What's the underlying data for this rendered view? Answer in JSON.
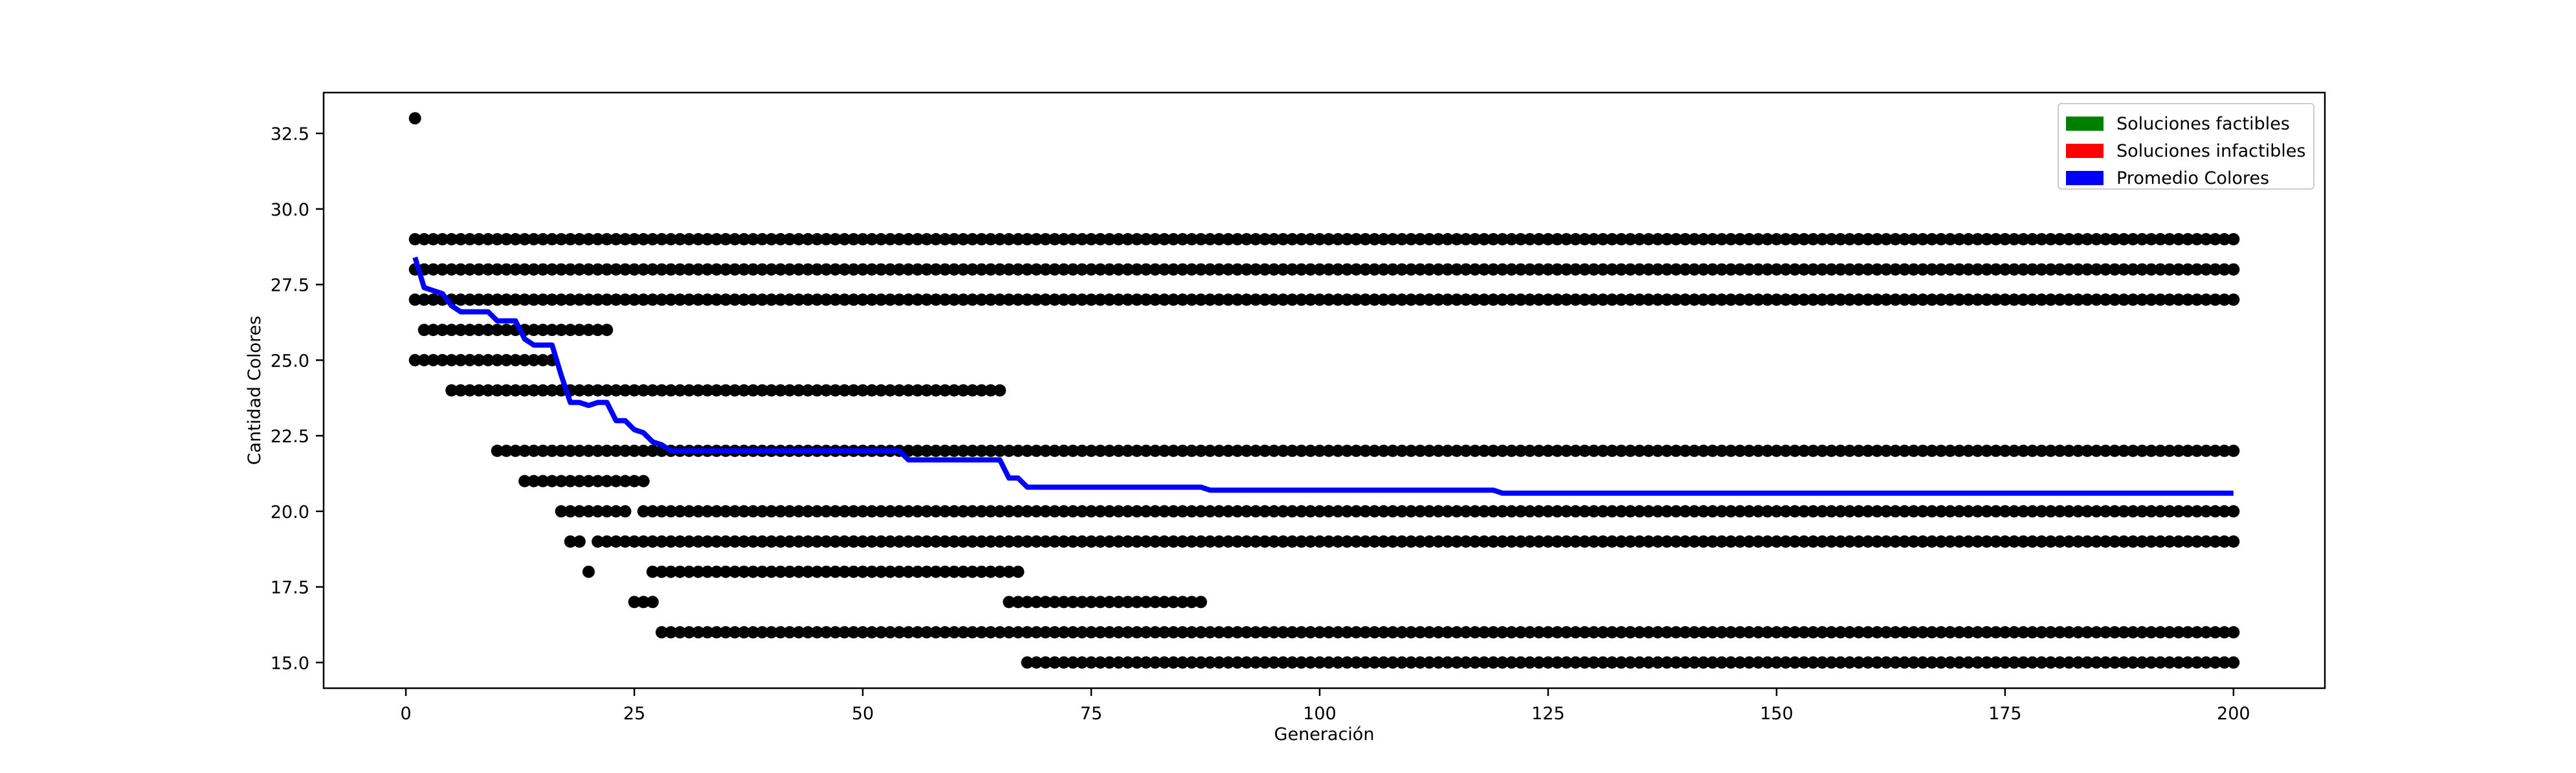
{
  "chart_data": {
    "type": "scatter",
    "title": "",
    "xlabel": "Generación",
    "ylabel": "Cantidad Colores",
    "xlim": [
      -9,
      210
    ],
    "ylim": [
      14.15,
      33.85
    ],
    "xticks": [
      0,
      25,
      50,
      75,
      100,
      125,
      150,
      175,
      200
    ],
    "yticks": [
      15.0,
      17.5,
      20.0,
      22.5,
      25.0,
      27.5,
      30.0,
      32.5
    ],
    "ytick_labels": [
      "15.0",
      "17.5",
      "20.0",
      "22.5",
      "25.0",
      "27.5",
      "30.0",
      "32.5"
    ],
    "grid": false,
    "legend_position": "top-right",
    "legend": [
      {
        "name": "Soluciones factibles",
        "color": "#008000"
      },
      {
        "name": "Soluciones infactibles",
        "color": "#ff0000"
      },
      {
        "name": "Promedio Colores",
        "color": "#0000ff"
      }
    ],
    "point_color": "#000000",
    "line_color": "#0000ff",
    "scatter_levels": [
      {
        "y": 33,
        "x_ranges": [
          [
            1,
            1
          ]
        ]
      },
      {
        "y": 29,
        "x_ranges": [
          [
            1,
            200
          ]
        ]
      },
      {
        "y": 28,
        "x_ranges": [
          [
            1,
            200
          ]
        ]
      },
      {
        "y": 27,
        "x_ranges": [
          [
            1,
            200
          ]
        ]
      },
      {
        "y": 26,
        "x_ranges": [
          [
            2,
            22
          ]
        ]
      },
      {
        "y": 25,
        "x_ranges": [
          [
            1,
            16
          ]
        ]
      },
      {
        "y": 24,
        "x_ranges": [
          [
            5,
            65
          ]
        ]
      },
      {
        "y": 22,
        "x_ranges": [
          [
            10,
            200
          ]
        ]
      },
      {
        "y": 21,
        "x_ranges": [
          [
            13,
            26
          ]
        ]
      },
      {
        "y": 20,
        "x_ranges": [
          [
            17,
            24
          ],
          [
            26,
            200
          ]
        ]
      },
      {
        "y": 19,
        "x_ranges": [
          [
            18,
            19
          ],
          [
            21,
            200
          ]
        ]
      },
      {
        "y": 18,
        "x_ranges": [
          [
            20,
            20
          ],
          [
            27,
            67
          ]
        ]
      },
      {
        "y": 17,
        "x_ranges": [
          [
            25,
            27
          ],
          [
            66,
            87
          ]
        ]
      },
      {
        "y": 16,
        "x_ranges": [
          [
            28,
            200
          ]
        ]
      },
      {
        "y": 15,
        "x_ranges": [
          [
            68,
            200
          ]
        ]
      }
    ],
    "series": [
      {
        "name": "Promedio Colores",
        "points": [
          [
            1,
            28.4
          ],
          [
            2,
            27.4
          ],
          [
            3,
            27.3
          ],
          [
            4,
            27.2
          ],
          [
            5,
            26.8
          ],
          [
            6,
            26.6
          ],
          [
            9,
            26.6
          ],
          [
            10,
            26.3
          ],
          [
            12,
            26.3
          ],
          [
            13,
            25.7
          ],
          [
            14,
            25.5
          ],
          [
            16,
            25.5
          ],
          [
            17,
            24.5
          ],
          [
            18,
            23.6
          ],
          [
            19,
            23.6
          ],
          [
            20,
            23.5
          ],
          [
            21,
            23.6
          ],
          [
            22,
            23.6
          ],
          [
            23,
            23.0
          ],
          [
            24,
            23.0
          ],
          [
            25,
            22.7
          ],
          [
            26,
            22.6
          ],
          [
            27,
            22.3
          ],
          [
            28,
            22.2
          ],
          [
            29,
            22.0
          ],
          [
            54,
            22.0
          ],
          [
            55,
            21.7
          ],
          [
            65,
            21.7
          ],
          [
            66,
            21.1
          ],
          [
            67,
            21.1
          ],
          [
            68,
            20.8
          ],
          [
            87,
            20.8
          ],
          [
            88,
            20.7
          ],
          [
            119,
            20.7
          ],
          [
            120,
            20.6
          ],
          [
            200,
            20.6
          ]
        ]
      }
    ]
  }
}
